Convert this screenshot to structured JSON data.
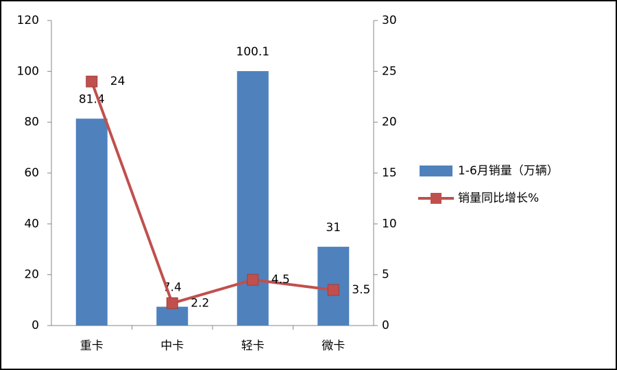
{
  "chart_data": {
    "type": "bar",
    "categories": [
      "重卡",
      "中卡",
      "轻卡",
      "微卡"
    ],
    "series": [
      {
        "name": "1-6月销量（万辆）",
        "color": "#4f81bd",
        "values": [
          81.4,
          7.4,
          100.1,
          31
        ]
      },
      {
        "name": "销量同比增长%",
        "color": "#c0504d",
        "type": "line",
        "axis": "y2",
        "values": [
          24,
          2.2,
          4.5,
          3.5
        ]
      }
    ],
    "ylim": [
      0,
      120
    ],
    "yticks": [
      0,
      20,
      40,
      60,
      80,
      100,
      120
    ],
    "y2lim": [
      0,
      30
    ],
    "y2ticks": [
      0,
      5,
      10,
      15,
      20,
      25,
      30
    ],
    "legend": "right",
    "grid": false
  }
}
